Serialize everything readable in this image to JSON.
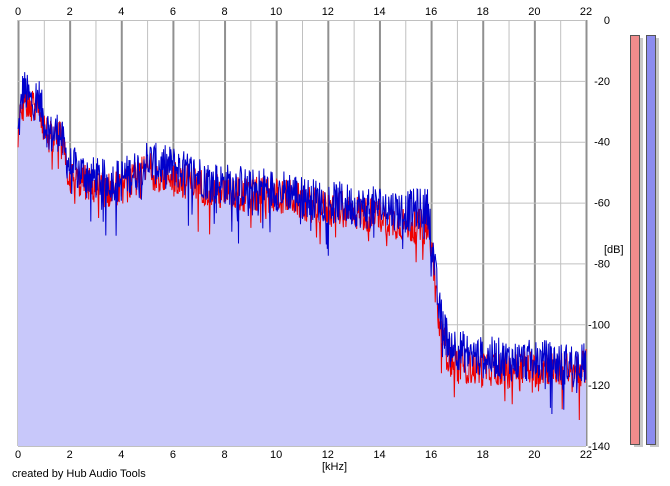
{
  "footer": {
    "credit": "created by Hub Audio Tools"
  },
  "chart_data": {
    "type": "area",
    "xlabel": "[kHz]",
    "ylabel": "[dB]",
    "xlim": [
      0,
      22
    ],
    "ylim": [
      -140,
      0
    ],
    "x_ticks": [
      0,
      2,
      4,
      6,
      8,
      10,
      12,
      14,
      16,
      18,
      20,
      22
    ],
    "y_ticks": [
      0,
      -20,
      -40,
      -60,
      -80,
      -100,
      -120,
      -140
    ],
    "x_tick_labels": [
      "0",
      "2",
      "4",
      "6",
      "8",
      "10",
      "12",
      "14",
      "16",
      "18",
      "20",
      "22"
    ],
    "y_tick_labels": [
      "0",
      "-20",
      "-40",
      "-60",
      "-80",
      "-100",
      "-120",
      "-140"
    ],
    "grid": true,
    "colors": {
      "fill": "#c8c8fa",
      "blue_channel": "#0000cc",
      "red_channel": "#ee0000",
      "grid": "#c0c0c0",
      "major_grid": "#909090",
      "meter_left": "#f08c8c",
      "meter_right": "#8c8cf0"
    },
    "series": [
      {
        "color": "#0000cc",
        "x": [
          0,
          0.2,
          0.5,
          0.8,
          1.0,
          1.3,
          1.6,
          1.8,
          2.0,
          2.5,
          3.0,
          3.5,
          4.0,
          4.5,
          5.0,
          5.5,
          6.0,
          6.5,
          7.0,
          7.5,
          8.0,
          8.5,
          9.0,
          9.5,
          10.0,
          10.5,
          11.0,
          11.5,
          12.0,
          12.5,
          13.0,
          13.5,
          14.0,
          14.5,
          15.0,
          15.5,
          15.9,
          16.1,
          16.3,
          16.6,
          17.0,
          17.5,
          18.0,
          18.5,
          19.0,
          19.5,
          20.0,
          20.5,
          21.0,
          21.5,
          22.0
        ],
        "values": [
          -38,
          -22,
          -27,
          -25,
          -33,
          -38,
          -36,
          -43,
          -48,
          -50,
          -52,
          -53,
          -52,
          -50,
          -46,
          -48,
          -48,
          -50,
          -51,
          -53,
          -54,
          -54,
          -56,
          -55,
          -56,
          -56,
          -58,
          -59,
          -60,
          -60,
          -61,
          -62,
          -61,
          -62,
          -63,
          -62,
          -62,
          -78,
          -95,
          -104,
          -108,
          -110,
          -111,
          -111,
          -112,
          -112,
          -112,
          -112,
          -113,
          -113,
          -113
        ]
      },
      {
        "color": "#ee0000",
        "x": [
          0,
          0.2,
          0.5,
          0.8,
          1.0,
          1.3,
          1.6,
          1.8,
          2.0,
          2.5,
          3.0,
          3.5,
          4.0,
          4.5,
          5.0,
          5.5,
          6.0,
          6.5,
          7.0,
          7.5,
          8.0,
          8.5,
          9.0,
          9.5,
          10.0,
          10.5,
          11.0,
          11.5,
          12.0,
          12.5,
          13.0,
          13.5,
          14.0,
          14.5,
          15.0,
          15.5,
          15.9,
          16.1,
          16.3,
          16.6,
          17.0,
          17.5,
          18.0,
          18.5,
          19.0,
          19.5,
          20.0,
          20.5,
          21.0,
          21.5,
          22.0
        ],
        "values": [
          -40,
          -24,
          -29,
          -27,
          -35,
          -40,
          -38,
          -45,
          -52,
          -53,
          -55,
          -56,
          -55,
          -53,
          -49,
          -51,
          -51,
          -53,
          -54,
          -56,
          -57,
          -57,
          -58,
          -57,
          -58,
          -58,
          -60,
          -61,
          -62,
          -62,
          -63,
          -64,
          -64,
          -66,
          -67,
          -68,
          -68,
          -80,
          -100,
          -109,
          -113,
          -114,
          -115,
          -114,
          -115,
          -114,
          -115,
          -114,
          -115,
          -115,
          -114
        ]
      }
    ]
  }
}
